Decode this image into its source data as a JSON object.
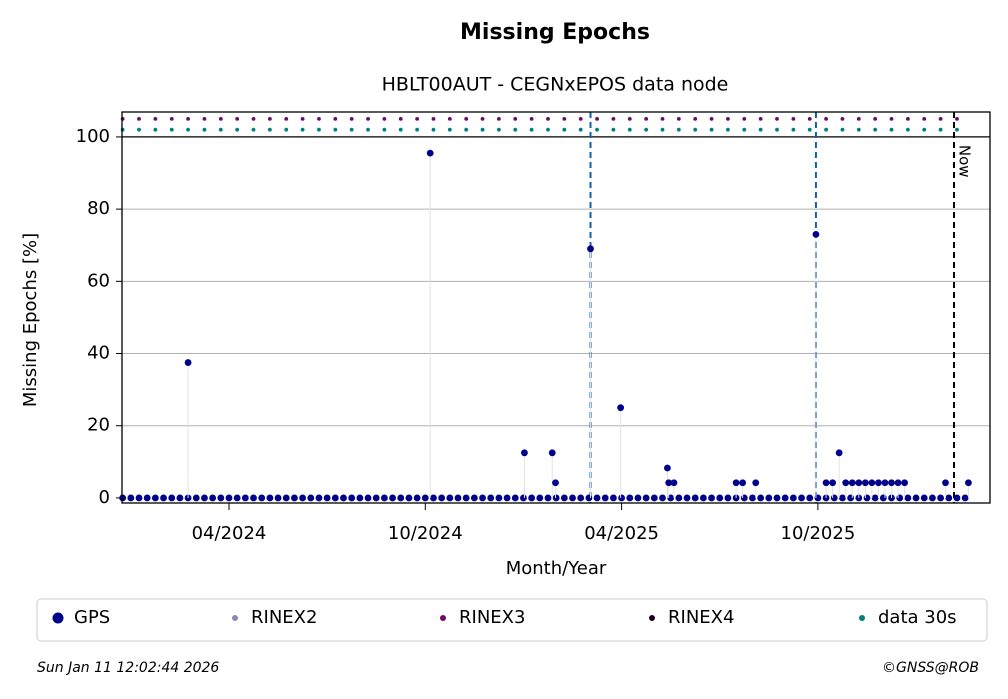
{
  "chart_data": {
    "type": "scatter",
    "title": "Missing Epochs",
    "subtitle": "HBLT00AUT - CEGNxEPOS data node",
    "x_label": "Month/Year",
    "y_label": "Missing Epochs [%]",
    "xlim": [
      0.73,
      27.26
    ],
    "ylim": [
      -1.4,
      106.9
    ],
    "xticks": [
      {
        "value": 4,
        "label": "04/2024"
      },
      {
        "value": 10,
        "label": "10/2024"
      },
      {
        "value": 16,
        "label": "04/2025"
      },
      {
        "value": 22,
        "label": "10/2025"
      }
    ],
    "yticks": [
      0,
      20,
      40,
      60,
      80,
      100
    ],
    "grid": true,
    "vlines": [
      15.05,
      21.94
    ],
    "now": {
      "x": 26.16,
      "label": "Now"
    },
    "series": [
      {
        "name": "GPS",
        "color": "#00008b",
        "x": [
          0.75,
          1,
          1.25,
          1.5,
          1.75,
          2,
          2.25,
          2.5,
          2.75,
          3,
          3.25,
          3.5,
          3.75,
          4,
          4.25,
          4.5,
          4.75,
          5,
          5.25,
          5.5,
          5.75,
          6,
          6.25,
          6.5,
          6.75,
          7,
          7.25,
          7.5,
          7.75,
          8,
          8.25,
          8.5,
          8.75,
          9,
          9.25,
          9.5,
          9.75,
          10,
          10.25,
          10.5,
          10.75,
          11,
          11.25,
          11.5,
          11.75,
          12,
          12.25,
          12.5,
          12.75,
          13,
          13.25,
          13.5,
          13.75,
          14,
          14.25,
          14.5,
          14.75,
          15,
          15.25,
          15.5,
          15.75,
          16,
          16.25,
          16.5,
          16.75,
          17,
          17.25,
          17.5,
          17.75,
          18,
          18.25,
          18.5,
          18.75,
          19,
          19.25,
          19.5,
          19.75,
          20,
          20.25,
          20.5,
          20.75,
          21,
          21.25,
          21.5,
          21.75,
          22,
          22.25,
          22.5,
          22.75,
          23,
          23.25,
          23.5,
          23.75,
          24,
          24.25,
          24.5,
          24.75,
          25,
          25.25,
          25.5,
          25.75,
          26,
          26.25,
          26.5,
          2.75,
          10.15,
          13.03,
          13.88,
          13.98,
          15.05,
          15.97,
          17.4,
          17.44,
          17.6,
          19.5,
          19.7,
          20.1,
          21.94,
          22.25,
          22.65,
          22.45,
          22.85,
          23.05,
          23.25,
          23.45,
          23.65,
          23.85,
          24.05,
          24.25,
          24.45,
          24.65,
          25.9,
          26.6
        ],
        "values": [
          0,
          0,
          0,
          0,
          0,
          0,
          0,
          0,
          0,
          0,
          0,
          0,
          0,
          0,
          0,
          0,
          0,
          0,
          0,
          0,
          0,
          0,
          0,
          0,
          0,
          0,
          0,
          0,
          0,
          0,
          0,
          0,
          0,
          0,
          0,
          0,
          0,
          0,
          0,
          0,
          0,
          0,
          0,
          0,
          0,
          0,
          0,
          0,
          0,
          0,
          0,
          0,
          0,
          0,
          0,
          0,
          0,
          0,
          0,
          0,
          0,
          0,
          0,
          0,
          0,
          0,
          0,
          0,
          0,
          0,
          0,
          0,
          0,
          0,
          0,
          0,
          0,
          0,
          0,
          0,
          0,
          0,
          0,
          0,
          0,
          0,
          0,
          0,
          0,
          0,
          0,
          0,
          0,
          0,
          0,
          0,
          0,
          0,
          0,
          0,
          0,
          0,
          0,
          0,
          37.5,
          95.5,
          12.5,
          12.5,
          4.2,
          69,
          25,
          8.3,
          4.2,
          4.2,
          4.2,
          4.2,
          4.2,
          73,
          4.2,
          12.5,
          4.2,
          4.2,
          4.2,
          4.2,
          4.2,
          4.2,
          4.2,
          4.2,
          4.2,
          4.2,
          4.2,
          4.2,
          4.2
        ]
      },
      {
        "name": "RINEX2",
        "color": "#8a86c2",
        "x": [],
        "values": []
      },
      {
        "name": "RINEX3",
        "color": "#6a0a6a",
        "x": [
          0.75,
          1.25,
          1.75,
          2.25,
          2.75,
          3.25,
          3.75,
          4.25,
          4.75,
          5.25,
          5.75,
          6.25,
          6.75,
          7.25,
          7.75,
          8.25,
          8.75,
          9.25,
          9.75,
          10.25,
          10.75,
          11.25,
          11.75,
          12.25,
          12.75,
          13.25,
          13.75,
          14.25,
          14.75,
          15.25,
          15.75,
          16.25,
          16.75,
          17.25,
          17.75,
          18.25,
          18.75,
          19.25,
          19.75,
          20.25,
          20.75,
          21.25,
          21.75,
          22.25,
          22.75,
          23.25,
          23.75,
          24.25,
          24.75,
          25.25,
          25.75,
          26.25
        ],
        "values": [
          105,
          105,
          105,
          105,
          105,
          105,
          105,
          105,
          105,
          105,
          105,
          105,
          105,
          105,
          105,
          105,
          105,
          105,
          105,
          105,
          105,
          105,
          105,
          105,
          105,
          105,
          105,
          105,
          105,
          105,
          105,
          105,
          105,
          105,
          105,
          105,
          105,
          105,
          105,
          105,
          105,
          105,
          105,
          105,
          105,
          105,
          105,
          105,
          105,
          105,
          105,
          105
        ]
      },
      {
        "name": "RINEX4",
        "color": "#200020",
        "x": [],
        "values": []
      },
      {
        "name": "data 30s",
        "color": "#008080",
        "x": [
          0.75,
          1.25,
          1.75,
          2.25,
          2.75,
          3.25,
          3.75,
          4.25,
          4.75,
          5.25,
          5.75,
          6.25,
          6.75,
          7.25,
          7.75,
          8.25,
          8.75,
          9.25,
          9.75,
          10.25,
          10.75,
          11.25,
          11.75,
          12.25,
          12.75,
          13.25,
          13.75,
          14.25,
          14.75,
          15.25,
          15.75,
          16.25,
          16.75,
          17.25,
          17.75,
          18.25,
          18.75,
          19.25,
          19.75,
          20.25,
          20.75,
          21.25,
          21.75,
          22.25,
          22.75,
          23.25,
          23.75,
          24.25,
          24.75,
          25.25,
          25.75,
          26.25
        ],
        "values": [
          102,
          102,
          102,
          102,
          102,
          102,
          102,
          102,
          102,
          102,
          102,
          102,
          102,
          102,
          102,
          102,
          102,
          102,
          102,
          102,
          102,
          102,
          102,
          102,
          102,
          102,
          102,
          102,
          102,
          102,
          102,
          102,
          102,
          102,
          102,
          102,
          102,
          102,
          102,
          102,
          102,
          102,
          102,
          102,
          102,
          102,
          102,
          102,
          102,
          102,
          102,
          102
        ]
      }
    ],
    "footer_left": "Sun Jan 11 12:02:44 2026",
    "footer_right": "©GNSS@ROB"
  }
}
